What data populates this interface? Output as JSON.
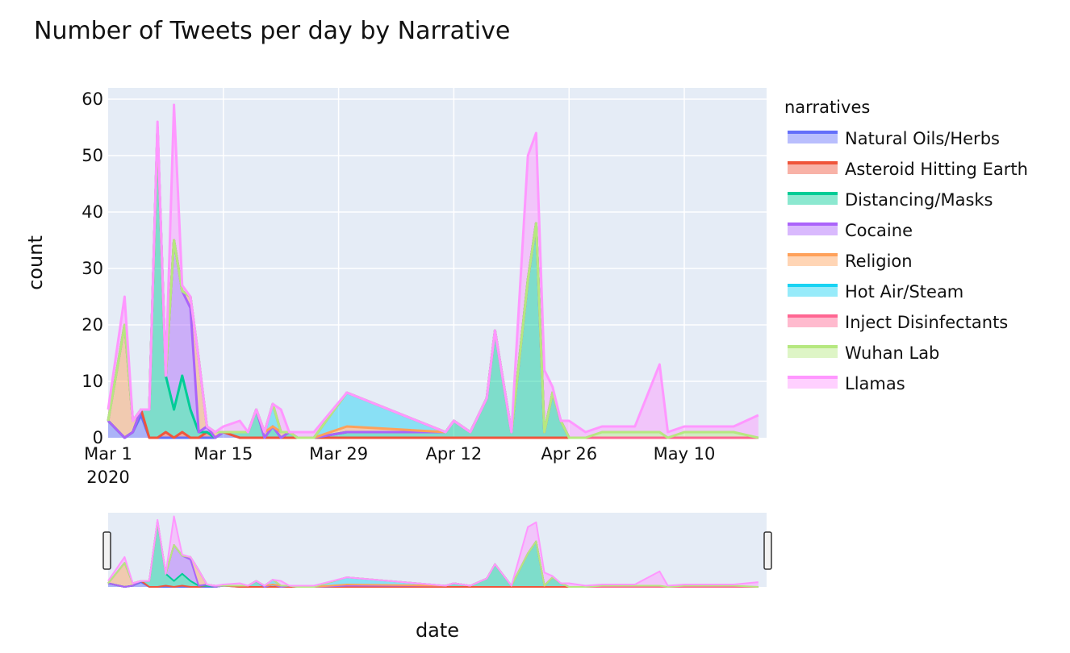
{
  "chart_data": {
    "type": "area",
    "stacked": true,
    "title": "Number of Tweets per day by Narrative",
    "xlabel": "date",
    "ylabel": "count",
    "x_ticks": [
      "Mar 1",
      "Mar 15",
      "Mar 29",
      "Apr 12",
      "Apr 26",
      "May 10"
    ],
    "x_tick_sub": "2020",
    "x_range": [
      "2020-03-01",
      "2020-05-20"
    ],
    "ylim": [
      0,
      62
    ],
    "y_ticks": [
      0,
      10,
      20,
      30,
      40,
      50,
      60
    ],
    "grid": true,
    "legend_title": "narratives",
    "legend_position": "right",
    "range_slider": true,
    "x": [
      "2020-03-01",
      "2020-03-03",
      "2020-03-04",
      "2020-03-05",
      "2020-03-06",
      "2020-03-07",
      "2020-03-08",
      "2020-03-09",
      "2020-03-10",
      "2020-03-11",
      "2020-03-12",
      "2020-03-13",
      "2020-03-14",
      "2020-03-15",
      "2020-03-17",
      "2020-03-18",
      "2020-03-19",
      "2020-03-20",
      "2020-03-21",
      "2020-03-22",
      "2020-03-23",
      "2020-03-24",
      "2020-03-25",
      "2020-03-26",
      "2020-03-30",
      "2020-04-11",
      "2020-04-12",
      "2020-04-14",
      "2020-04-16",
      "2020-04-17",
      "2020-04-19",
      "2020-04-21",
      "2020-04-22",
      "2020-04-23",
      "2020-04-24",
      "2020-04-25",
      "2020-04-26",
      "2020-04-28",
      "2020-04-30",
      "2020-05-02",
      "2020-05-04",
      "2020-05-07",
      "2020-05-08",
      "2020-05-10",
      "2020-05-13",
      "2020-05-16",
      "2020-05-19"
    ],
    "series": [
      {
        "name": "Natural Oils/Herbs",
        "color": "#636efa",
        "values": [
          3,
          0,
          1,
          4,
          0,
          0,
          0,
          0,
          0,
          0,
          0,
          0,
          0,
          1,
          0,
          0,
          0,
          0,
          0,
          0,
          0,
          0,
          0,
          0,
          0,
          0,
          0,
          0,
          0,
          0,
          0,
          0,
          0,
          0,
          0,
          0,
          0,
          0,
          0,
          0,
          0,
          0,
          0,
          0,
          0,
          0,
          0
        ]
      },
      {
        "name": "Asteroid Hitting Earth",
        "color": "#EF553B",
        "values": [
          0,
          0,
          0,
          1,
          0,
          0,
          1,
          0,
          1,
          0,
          0,
          1,
          0,
          0,
          0,
          0,
          0,
          0,
          0,
          0,
          0,
          0,
          0,
          0,
          0,
          0,
          0,
          0,
          0,
          0,
          0,
          0,
          0,
          0,
          0,
          0,
          0,
          0,
          0,
          0,
          0,
          0,
          0,
          0,
          0,
          0,
          0
        ]
      },
      {
        "name": "Distancing/Masks",
        "color": "#00cc96",
        "values": [
          0,
          0,
          0,
          0,
          5,
          55,
          10,
          5,
          10,
          5,
          1,
          0,
          0,
          0,
          1,
          1,
          5,
          0,
          2,
          0,
          1,
          0,
          0,
          0,
          1,
          1,
          3,
          1,
          7,
          19,
          1,
          28,
          38,
          1,
          8,
          3,
          0,
          0,
          0,
          0,
          0,
          0,
          0,
          0,
          0,
          0,
          0
        ]
      },
      {
        "name": "Cocaine",
        "color": "#ab63fa",
        "values": [
          0,
          0,
          0,
          0,
          0,
          0,
          0,
          30,
          15,
          18,
          0,
          1,
          0,
          0,
          0,
          0,
          0,
          0,
          0,
          0,
          0,
          0,
          0,
          0,
          0,
          0,
          0,
          0,
          0,
          0,
          0,
          0,
          0,
          0,
          0,
          0,
          0,
          0,
          0,
          0,
          0,
          0,
          0,
          0,
          0,
          0,
          0
        ]
      },
      {
        "name": "Religion",
        "color": "#FFA15A",
        "values": [
          0,
          20,
          2,
          0,
          0,
          0,
          0,
          0,
          0,
          2,
          13,
          0,
          1,
          0,
          0,
          0,
          0,
          1,
          0,
          1,
          0,
          0,
          0,
          0,
          1,
          0,
          0,
          0,
          0,
          0,
          0,
          0,
          0,
          0,
          0,
          0,
          0,
          0,
          0,
          0,
          0,
          0,
          0,
          0,
          0,
          0,
          0
        ]
      },
      {
        "name": "Hot Air/Steam",
        "color": "#19d3f3",
        "values": [
          0,
          0,
          0,
          0,
          0,
          0,
          0,
          0,
          0,
          0,
          0,
          0,
          0,
          0,
          0,
          0,
          0,
          0,
          4,
          0,
          0,
          0,
          0,
          0,
          6,
          0,
          0,
          0,
          0,
          0,
          0,
          0,
          0,
          0,
          0,
          0,
          0,
          0,
          0,
          0,
          0,
          0,
          0,
          0,
          0,
          0,
          0
        ]
      },
      {
        "name": "Inject Disinfectants",
        "color": "#FF6692",
        "values": [
          0,
          0,
          0,
          0,
          0,
          0,
          0,
          0,
          0,
          0,
          0,
          0,
          0,
          0,
          0,
          0,
          0,
          0,
          0,
          0,
          0,
          0,
          0,
          0,
          0,
          0,
          0,
          0,
          0,
          0,
          0,
          0,
          0,
          0,
          0,
          0,
          0,
          0,
          0,
          0,
          0,
          0,
          0,
          0,
          0,
          0,
          0
        ]
      },
      {
        "name": "Wuhan Lab",
        "color": "#B6E880",
        "values": [
          0,
          0,
          0,
          0,
          0,
          0,
          0,
          0,
          0,
          0,
          0,
          0,
          0,
          0,
          0,
          0,
          0,
          0,
          0,
          0,
          0,
          0,
          0,
          0,
          0,
          0,
          0,
          0,
          0,
          0,
          0,
          0,
          0,
          0,
          0,
          0,
          0,
          0,
          1,
          1,
          1,
          1,
          0,
          1,
          1,
          1,
          0
        ]
      },
      {
        "name": "Llamas",
        "color": "#FF97FF",
        "values": [
          2,
          5,
          0,
          0,
          0,
          1,
          0,
          24,
          1,
          0,
          0,
          0,
          0,
          1,
          2,
          0,
          0,
          0,
          0,
          4,
          0,
          1,
          1,
          1,
          0,
          0,
          0,
          0,
          0,
          0,
          0,
          22,
          16,
          11,
          1,
          0,
          3,
          1,
          1,
          1,
          1,
          12,
          1,
          1,
          1,
          1,
          4
        ]
      }
    ]
  }
}
